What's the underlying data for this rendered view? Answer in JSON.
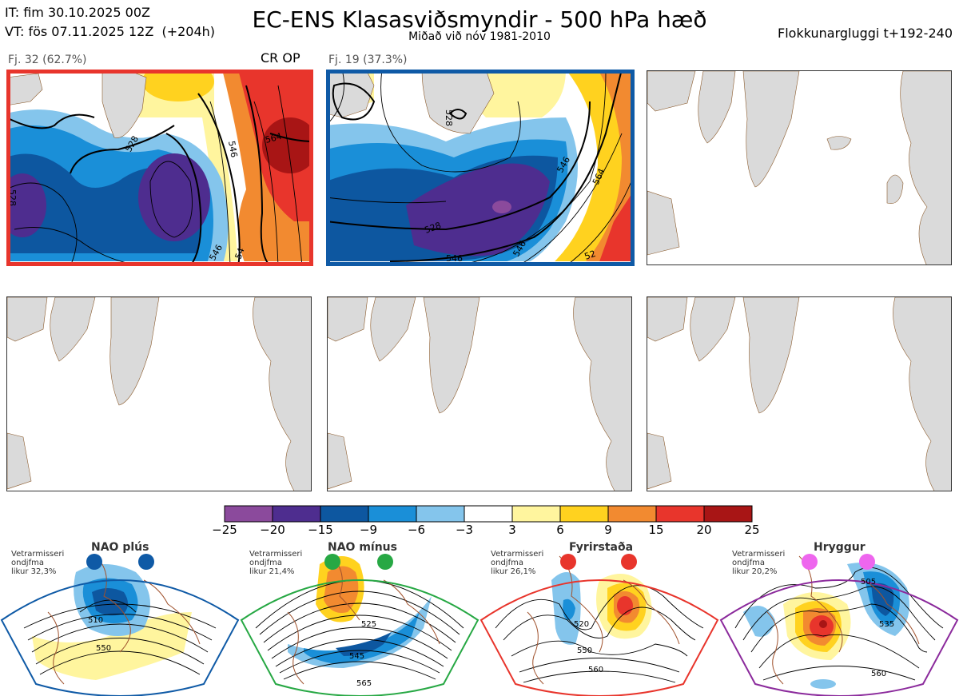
{
  "header": {
    "init_time": "IT: fim 30.10.2025 00Z",
    "valid_time": "VT: fös 07.11.2025 12Z  (+204h)",
    "title": "EC-ENS Klasasviðsmyndir - 500 hPa hæð",
    "subtitle": "Miðað við nóv 1981-2010",
    "window": "Flokkunargluggi t+192-240"
  },
  "clusters": [
    {
      "label": "Fj. 32 (62.7%)",
      "border_color": "#e8352c",
      "op_label": "CR OP",
      "contour_labels": [
        "528",
        "546",
        "564",
        "528",
        "546",
        "54"
      ]
    },
    {
      "label": "Fj. 19 (37.3%)",
      "border_color": "#0f5aa6",
      "contour_labels": [
        "528",
        "528",
        "546",
        "564",
        "546",
        "52",
        "546"
      ]
    }
  ],
  "colorbar": {
    "ticks": [
      "−25",
      "−20",
      "−15",
      "−9",
      "−6",
      "−3",
      "3",
      "6",
      "9",
      "15",
      "20",
      "25"
    ],
    "colors": [
      "#8b4a9c",
      "#4e2d8f",
      "#0d57a0",
      "#1a8fd8",
      "#84c5ec",
      "#ffffff",
      "#fff59e",
      "#ffd21f",
      "#f28a30",
      "#e8352c",
      "#a81515"
    ]
  },
  "regimes": [
    {
      "name": "NAO plús",
      "note": "Vetrarmisseri\nondjfma\nlikur 32,3%",
      "color": "#0f5aa6",
      "contour_labels": [
        "510",
        "550"
      ]
    },
    {
      "name": "NAO mínus",
      "note": "Vetrarmisseri\nondjfma\nlikur 21,4%",
      "color": "#27a844",
      "contour_labels": [
        "525",
        "545",
        "565"
      ]
    },
    {
      "name": "Fyrirstaða",
      "note": "Vetrarmisseri\nondjfma\nlikur 26,1%",
      "color": "#e8352c",
      "contour_labels": [
        "520",
        "550",
        "560"
      ]
    },
    {
      "name": "Hryggur",
      "note": "Vetrarmisseri\nondjfma\nlikur 20,2%",
      "color": "#8b2a9c",
      "dot_color": "#ee66ee",
      "contour_labels": [
        "505",
        "535",
        "560"
      ]
    }
  ]
}
